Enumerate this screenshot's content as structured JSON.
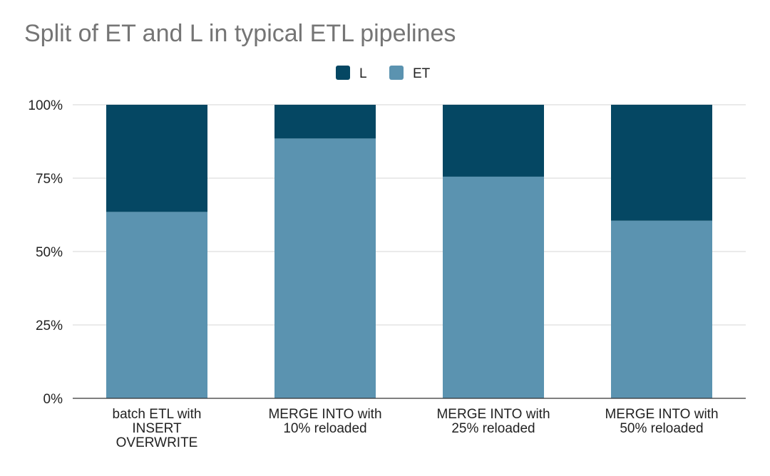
{
  "chart_data": {
    "type": "bar",
    "stacked": true,
    "percent": true,
    "title": "Split of ET and L in typical ETL pipelines",
    "xlabel": "",
    "ylabel": "",
    "categories": [
      "batch ETL with INSERT OVERWRITE",
      "MERGE INTO with 10% reloaded",
      "MERGE INTO with 25% reloaded",
      "MERGE INTO with 50% reloaded"
    ],
    "category_lines": [
      [
        "batch ETL with",
        "INSERT",
        "OVERWRITE"
      ],
      [
        "MERGE INTO with",
        "10% reloaded"
      ],
      [
        "MERGE INTO with",
        "25% reloaded"
      ],
      [
        "MERGE INTO with",
        "50% reloaded"
      ]
    ],
    "series": [
      {
        "name": "ET",
        "color": "#5b93b0",
        "values": [
          63.5,
          88.5,
          75.5,
          60.5
        ]
      },
      {
        "name": "L",
        "color": "#054763",
        "values": [
          36.5,
          11.5,
          24.5,
          39.5
        ]
      }
    ],
    "legend_order": [
      "L",
      "ET"
    ],
    "legend_position": "top-center",
    "ylim": [
      0,
      100
    ],
    "yticks": [
      0,
      25,
      50,
      75,
      100
    ],
    "ytick_labels": [
      "0%",
      "25%",
      "50%",
      "75%",
      "100%"
    ],
    "grid": true
  }
}
